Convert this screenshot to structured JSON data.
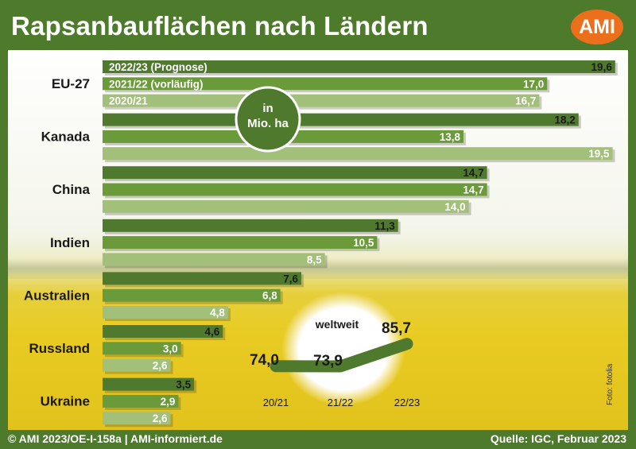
{
  "title": "Rapsanbauflächen nach Ländern",
  "logo_text": "AMI",
  "footer_left": "© AMI 2023/OE-I-158a | AMI-informiert.de",
  "footer_right": "Quelle: IGC, Februar 2023",
  "photo_credit": "Foto: fotolia",
  "colors": {
    "frame": "#4e7a2c",
    "dark": "#4f7a2d",
    "mid": "#6a9a3a",
    "light": "#a3c07a",
    "logo": "#ec6f1b"
  },
  "chart_data": [
    {
      "type": "bar",
      "orientation": "horizontal",
      "unit_label": [
        "in",
        "Mio. ha"
      ],
      "categories": [
        "EU-27",
        "Kanada",
        "China",
        "Indien",
        "Australien",
        "Russland",
        "Ukraine"
      ],
      "series": [
        {
          "name": "2022/23 (Prognose)",
          "values": [
            19.6,
            18.2,
            14.7,
            11.3,
            7.6,
            4.6,
            3.5
          ],
          "labels": [
            "19,6",
            "18,2",
            "14,7",
            "11,3",
            "7,6",
            "4,6",
            "3,5"
          ]
        },
        {
          "name": "2021/22 (vorläufig)",
          "values": [
            17.0,
            13.8,
            14.7,
            10.5,
            6.8,
            3.0,
            2.9
          ],
          "labels": [
            "17,0",
            "13,8",
            "14,7",
            "10,5",
            "6,8",
            "3,0",
            "2,9"
          ]
        },
        {
          "name": "2020/21",
          "values": [
            16.7,
            19.5,
            14.0,
            8.5,
            4.8,
            2.6,
            2.6
          ],
          "labels": [
            "16,7",
            "19,5",
            "14,0",
            "8,5",
            "4,8",
            "2,6",
            "2,6"
          ]
        }
      ]
    },
    {
      "type": "line",
      "title": "weltweit",
      "x": [
        "20/21",
        "21/22",
        "22/23"
      ],
      "values": [
        74.0,
        73.9,
        85.7
      ],
      "labels": [
        "74,0",
        "73,9",
        "85,7"
      ]
    }
  ]
}
